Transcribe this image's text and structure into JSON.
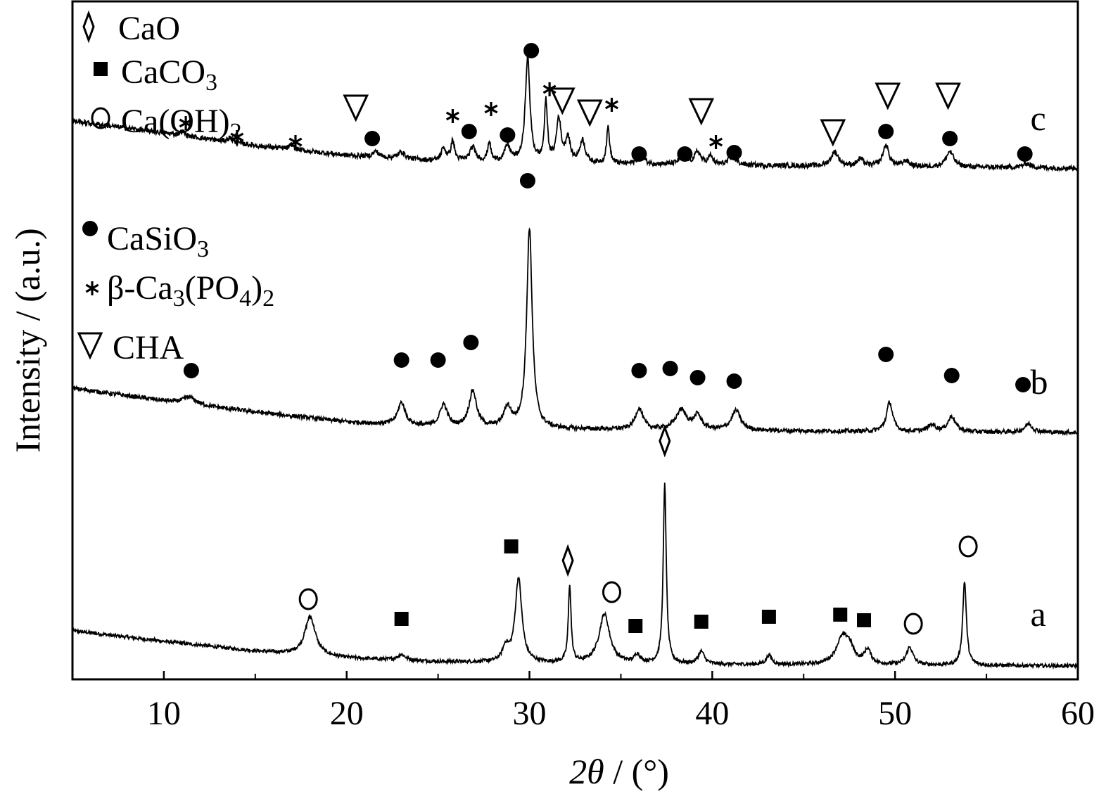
{
  "chart_data": {
    "type": "line",
    "xlabel": "2θ / (°)",
    "ylabel": "Intensity / (a.u.)",
    "xlim": [
      5,
      60
    ],
    "xticks": [
      10,
      20,
      30,
      40,
      50,
      60
    ],
    "grid": false,
    "y_ticks_shown": false,
    "legend": [
      {
        "marker": "diamond",
        "symbol": "◊",
        "label": "CaO",
        "label_parts": [
          [
            "CaO",
            false
          ]
        ]
      },
      {
        "marker": "square",
        "symbol": "■",
        "label": "CaCO3",
        "label_parts": [
          [
            "CaCO",
            false
          ],
          [
            "3",
            true
          ]
        ]
      },
      {
        "marker": "circle-open",
        "symbol": "o",
        "label": "Ca(OH)2",
        "label_parts": [
          [
            "Ca(OH)",
            false
          ],
          [
            "2",
            true
          ]
        ]
      },
      {
        "marker": "circle-filled",
        "symbol": "●",
        "label": "CaSiO3",
        "label_parts": [
          [
            "CaSiO",
            false
          ],
          [
            "3",
            true
          ]
        ]
      },
      {
        "marker": "asterisk",
        "symbol": "*",
        "label": "β-Ca3(PO4)2",
        "label_parts": [
          [
            "β-Ca",
            false
          ],
          [
            "3",
            true
          ],
          [
            "(PO",
            false
          ],
          [
            "4",
            true
          ],
          [
            ")",
            false
          ],
          [
            "2",
            true
          ]
        ]
      },
      {
        "marker": "triangle-down",
        "symbol": "▽",
        "label": "CHA",
        "label_parts": [
          [
            "CHA",
            false
          ]
        ]
      }
    ],
    "series": [
      {
        "name": "a",
        "offset": 0.0,
        "background": [
          [
            5,
            0.55
          ],
          [
            10,
            0.4
          ],
          [
            15,
            0.26
          ],
          [
            20,
            0.16
          ],
          [
            25,
            0.11
          ],
          [
            30,
            0.09
          ],
          [
            40,
            0.07
          ],
          [
            50,
            0.06
          ],
          [
            60,
            0.05
          ]
        ],
        "noise": 0.025,
        "peaks": [
          {
            "x": 18.0,
            "h": 0.55,
            "w": 0.35
          },
          {
            "x": 23.0,
            "h": 0.08,
            "w": 0.25
          },
          {
            "x": 28.7,
            "h": 0.2,
            "w": 0.2
          },
          {
            "x": 29.4,
            "h": 1.2,
            "w": 0.22
          },
          {
            "x": 32.2,
            "h": 1.1,
            "w": 0.09
          },
          {
            "x": 34.1,
            "h": 0.7,
            "w": 0.35
          },
          {
            "x": 35.9,
            "h": 0.12,
            "w": 0.18
          },
          {
            "x": 37.4,
            "h": 2.55,
            "w": 0.1
          },
          {
            "x": 39.4,
            "h": 0.18,
            "w": 0.2
          },
          {
            "x": 43.1,
            "h": 0.13,
            "w": 0.18
          },
          {
            "x": 47.1,
            "h": 0.35,
            "w": 0.4
          },
          {
            "x": 47.5,
            "h": 0.2,
            "w": 0.3
          },
          {
            "x": 48.5,
            "h": 0.2,
            "w": 0.22
          },
          {
            "x": 50.8,
            "h": 0.25,
            "w": 0.22
          },
          {
            "x": 53.8,
            "h": 1.2,
            "w": 0.12
          }
        ],
        "markers": [
          {
            "x": 17.9,
            "y": 1.0,
            "marker": "circle-open"
          },
          {
            "x": 23.0,
            "y": 0.72,
            "marker": "square"
          },
          {
            "x": 29.0,
            "y": 1.75,
            "marker": "square"
          },
          {
            "x": 32.1,
            "y": 1.55,
            "marker": "diamond"
          },
          {
            "x": 34.5,
            "y": 1.1,
            "marker": "circle-open"
          },
          {
            "x": 35.8,
            "y": 0.62,
            "marker": "square"
          },
          {
            "x": 37.4,
            "y": 3.25,
            "marker": "diamond"
          },
          {
            "x": 39.4,
            "y": 0.68,
            "marker": "square"
          },
          {
            "x": 43.1,
            "y": 0.75,
            "marker": "square"
          },
          {
            "x": 47.0,
            "y": 0.78,
            "marker": "square"
          },
          {
            "x": 48.3,
            "y": 0.7,
            "marker": "square"
          },
          {
            "x": 51.0,
            "y": 0.65,
            "marker": "circle-open"
          },
          {
            "x": 54.0,
            "y": 1.75,
            "marker": "circle-open"
          }
        ]
      },
      {
        "name": "b",
        "offset": 3.3,
        "background": [
          [
            5,
            0.7
          ],
          [
            10,
            0.52
          ],
          [
            15,
            0.36
          ],
          [
            20,
            0.22
          ],
          [
            25,
            0.14
          ],
          [
            30,
            0.12
          ],
          [
            40,
            0.1
          ],
          [
            50,
            0.08
          ],
          [
            60,
            0.07
          ]
        ],
        "noise": 0.03,
        "peaks": [
          {
            "x": 11.4,
            "h": 0.1,
            "w": 0.4
          },
          {
            "x": 23.0,
            "h": 0.32,
            "w": 0.25
          },
          {
            "x": 25.3,
            "h": 0.32,
            "w": 0.25
          },
          {
            "x": 26.9,
            "h": 0.52,
            "w": 0.25
          },
          {
            "x": 28.8,
            "h": 0.28,
            "w": 0.25
          },
          {
            "x": 30.0,
            "h": 2.85,
            "w": 0.18
          },
          {
            "x": 36.0,
            "h": 0.3,
            "w": 0.25
          },
          {
            "x": 38.3,
            "h": 0.28,
            "w": 0.35
          },
          {
            "x": 39.2,
            "h": 0.2,
            "w": 0.25
          },
          {
            "x": 41.3,
            "h": 0.28,
            "w": 0.3
          },
          {
            "x": 49.7,
            "h": 0.42,
            "w": 0.2
          },
          {
            "x": 52.0,
            "h": 0.1,
            "w": 0.25
          },
          {
            "x": 53.1,
            "h": 0.22,
            "w": 0.25
          },
          {
            "x": 57.3,
            "h": 0.12,
            "w": 0.25
          }
        ],
        "markers": [
          {
            "x": 11.5,
            "y": 0.95,
            "marker": "circle-filled"
          },
          {
            "x": 23.0,
            "y": 1.1,
            "marker": "circle-filled"
          },
          {
            "x": 25.0,
            "y": 1.1,
            "marker": "circle-filled"
          },
          {
            "x": 26.8,
            "y": 1.35,
            "marker": "circle-filled"
          },
          {
            "x": 29.9,
            "y": 3.65,
            "marker": "circle-filled"
          },
          {
            "x": 36.0,
            "y": 0.95,
            "marker": "circle-filled"
          },
          {
            "x": 37.7,
            "y": 0.98,
            "marker": "circle-filled"
          },
          {
            "x": 39.2,
            "y": 0.85,
            "marker": "circle-filled"
          },
          {
            "x": 41.2,
            "y": 0.8,
            "marker": "circle-filled"
          },
          {
            "x": 49.5,
            "y": 1.18,
            "marker": "circle-filled"
          },
          {
            "x": 53.1,
            "y": 0.88,
            "marker": "circle-filled"
          },
          {
            "x": 57.0,
            "y": 0.75,
            "marker": "circle-filled"
          }
        ]
      },
      {
        "name": "c",
        "offset": 7.05,
        "background": [
          [
            5,
            0.75
          ],
          [
            10,
            0.58
          ],
          [
            15,
            0.4
          ],
          [
            20,
            0.26
          ],
          [
            25,
            0.18
          ],
          [
            30,
            0.15
          ],
          [
            40,
            0.12
          ],
          [
            50,
            0.1
          ],
          [
            60,
            0.08
          ]
        ],
        "noise": 0.035,
        "peaks": [
          {
            "x": 11.0,
            "h": 0.06,
            "w": 0.15
          },
          {
            "x": 13.6,
            "h": 0.06,
            "w": 0.15
          },
          {
            "x": 17.0,
            "h": 0.07,
            "w": 0.15
          },
          {
            "x": 21.6,
            "h": 0.08,
            "w": 0.2
          },
          {
            "x": 23.0,
            "h": 0.1,
            "w": 0.2
          },
          {
            "x": 25.3,
            "h": 0.18,
            "w": 0.15
          },
          {
            "x": 25.8,
            "h": 0.28,
            "w": 0.12
          },
          {
            "x": 26.9,
            "h": 0.2,
            "w": 0.2
          },
          {
            "x": 27.8,
            "h": 0.28,
            "w": 0.1
          },
          {
            "x": 28.8,
            "h": 0.22,
            "w": 0.2
          },
          {
            "x": 29.9,
            "h": 1.5,
            "w": 0.15
          },
          {
            "x": 30.9,
            "h": 0.85,
            "w": 0.1
          },
          {
            "x": 31.6,
            "h": 0.62,
            "w": 0.15
          },
          {
            "x": 32.1,
            "h": 0.35,
            "w": 0.15
          },
          {
            "x": 32.9,
            "h": 0.32,
            "w": 0.18
          },
          {
            "x": 34.3,
            "h": 0.52,
            "w": 0.1
          },
          {
            "x": 36.1,
            "h": 0.14,
            "w": 0.2
          },
          {
            "x": 38.4,
            "h": 0.12,
            "w": 0.25
          },
          {
            "x": 39.2,
            "h": 0.18,
            "w": 0.2
          },
          {
            "x": 39.9,
            "h": 0.12,
            "w": 0.15
          },
          {
            "x": 41.1,
            "h": 0.12,
            "w": 0.25
          },
          {
            "x": 46.7,
            "h": 0.2,
            "w": 0.25
          },
          {
            "x": 48.1,
            "h": 0.1,
            "w": 0.2
          },
          {
            "x": 49.5,
            "h": 0.3,
            "w": 0.2
          },
          {
            "x": 50.6,
            "h": 0.08,
            "w": 0.2
          },
          {
            "x": 53.0,
            "h": 0.22,
            "w": 0.25
          },
          {
            "x": 57.2,
            "h": 0.06,
            "w": 0.25
          }
        ],
        "markers": [
          {
            "x": 11.2,
            "y": 0.72,
            "marker": "asterisk"
          },
          {
            "x": 14.0,
            "y": 0.52,
            "marker": "asterisk"
          },
          {
            "x": 17.2,
            "y": 0.45,
            "marker": "asterisk"
          },
          {
            "x": 20.5,
            "y": 0.95,
            "marker": "triangle-down"
          },
          {
            "x": 21.4,
            "y": 0.5,
            "marker": "circle-filled"
          },
          {
            "x": 25.8,
            "y": 0.82,
            "marker": "asterisk"
          },
          {
            "x": 26.7,
            "y": 0.6,
            "marker": "circle-filled"
          },
          {
            "x": 27.9,
            "y": 0.92,
            "marker": "asterisk"
          },
          {
            "x": 28.8,
            "y": 0.55,
            "marker": "circle-filled"
          },
          {
            "x": 30.1,
            "y": 1.75,
            "marker": "circle-filled"
          },
          {
            "x": 31.1,
            "y": 1.2,
            "marker": "asterisk"
          },
          {
            "x": 31.8,
            "y": 1.05,
            "marker": "triangle-down"
          },
          {
            "x": 33.3,
            "y": 0.88,
            "marker": "triangle-down"
          },
          {
            "x": 34.5,
            "y": 0.98,
            "marker": "asterisk"
          },
          {
            "x": 36.0,
            "y": 0.28,
            "marker": "circle-filled"
          },
          {
            "x": 38.5,
            "y": 0.28,
            "marker": "circle-filled"
          },
          {
            "x": 39.4,
            "y": 0.9,
            "marker": "triangle-down"
          },
          {
            "x": 40.2,
            "y": 0.45,
            "marker": "asterisk"
          },
          {
            "x": 41.2,
            "y": 0.3,
            "marker": "circle-filled"
          },
          {
            "x": 46.6,
            "y": 0.6,
            "marker": "triangle-down"
          },
          {
            "x": 49.5,
            "y": 0.6,
            "marker": "circle-filled"
          },
          {
            "x": 49.6,
            "y": 1.12,
            "marker": "triangle-down"
          },
          {
            "x": 52.9,
            "y": 1.12,
            "marker": "triangle-down"
          },
          {
            "x": 53.0,
            "y": 0.5,
            "marker": "circle-filled"
          },
          {
            "x": 57.1,
            "y": 0.28,
            "marker": "circle-filled"
          }
        ]
      }
    ]
  }
}
